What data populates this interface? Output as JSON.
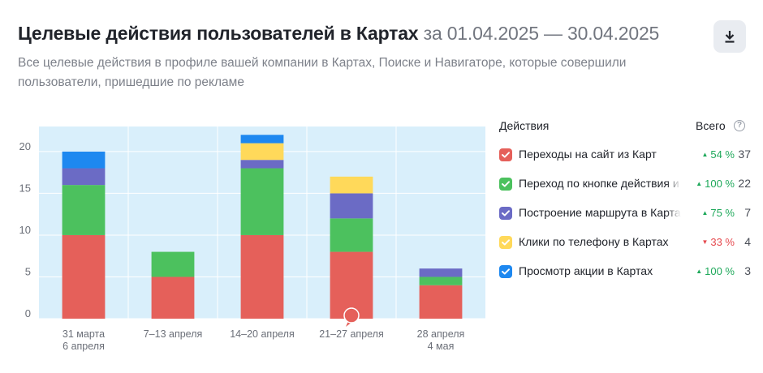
{
  "header": {
    "title": "Целевые действия пользователей в Картах",
    "period": "за 01.04.2025 — 30.04.2025",
    "subtitle": "Все целевые действия в профиле вашей компании в Картах, Поиске и Навигаторе, которые совершили пользователи, пришедшие по рекламе",
    "download_icon": "download-icon"
  },
  "legend": {
    "header_actions": "Действия",
    "header_total": "Всего",
    "help_icon": "question-circle-icon",
    "items": [
      {
        "label": "Переходы на сайт из Карт",
        "color": "#e5605a",
        "delta": "54 %",
        "trend": "up",
        "total": "37",
        "faded": false
      },
      {
        "label": "Переход по кнопке действия и",
        "color": "#4cc15e",
        "delta": "100 %",
        "trend": "up",
        "total": "22",
        "faded": true
      },
      {
        "label": "Построение маршрута в Картах",
        "color": "#6b6bc5",
        "delta": "75 %",
        "trend": "up",
        "total": "7",
        "faded": true
      },
      {
        "label": "Клики по телефону в Картах",
        "color": "#ffd95a",
        "delta": "33 %",
        "trend": "down",
        "total": "4",
        "faded": false
      },
      {
        "label": "Просмотр акции в Картах",
        "color": "#1e88f0",
        "delta": "100 %",
        "trend": "up",
        "total": "3",
        "faded": false
      }
    ]
  },
  "chart_data": {
    "type": "bar",
    "stacked": true,
    "categories": [
      [
        "31 марта",
        "6 апреля"
      ],
      [
        "7–13 апреля"
      ],
      [
        "14–20 апреля"
      ],
      [
        "21–27 апреля"
      ],
      [
        "28 апреля",
        "4 мая"
      ]
    ],
    "series": [
      {
        "name": "Переходы на сайт из Карт",
        "color": "#e5605a",
        "values": [
          10,
          5,
          10,
          8,
          4
        ]
      },
      {
        "name": "Переход по кнопке действия и",
        "color": "#4cc15e",
        "values": [
          6,
          3,
          8,
          4,
          1
        ]
      },
      {
        "name": "Построение маршрута в Картах",
        "color": "#6b6bc5",
        "values": [
          2,
          0,
          1,
          3,
          1
        ]
      },
      {
        "name": "Клики по телефону в Картах",
        "color": "#ffd95a",
        "values": [
          0,
          0,
          2,
          2,
          0
        ]
      },
      {
        "name": "Просмотр акции в Картах",
        "color": "#1e88f0",
        "values": [
          2,
          0,
          1,
          0,
          0
        ]
      }
    ],
    "yticks": [
      0,
      5,
      10,
      15,
      20
    ],
    "ylim": [
      0,
      23
    ],
    "grid": true,
    "background": "#d9effb",
    "marker_category_index": 3,
    "marker_color": "#e5605a"
  }
}
